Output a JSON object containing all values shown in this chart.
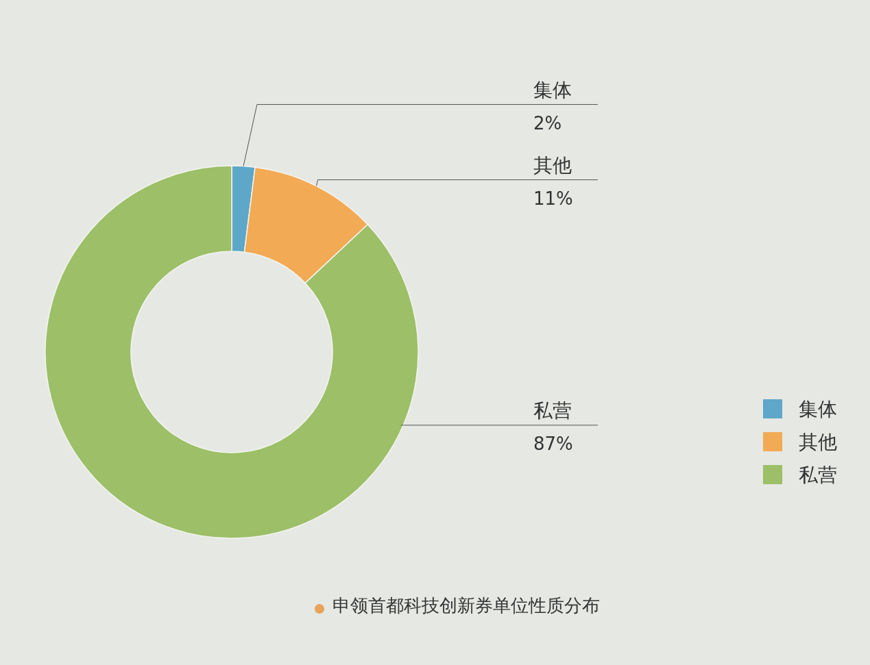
{
  "chart_data": {
    "type": "donut",
    "title": "申领首都科技创新券单位性质分布",
    "categories": [
      "集体",
      "其他",
      "私营"
    ],
    "values": [
      2,
      11,
      87
    ],
    "colors": [
      "#5ea7c9",
      "#f2aa55",
      "#9cbf68"
    ],
    "value_labels": [
      "2%",
      "11%",
      "87%"
    ],
    "legend": "right"
  }
}
